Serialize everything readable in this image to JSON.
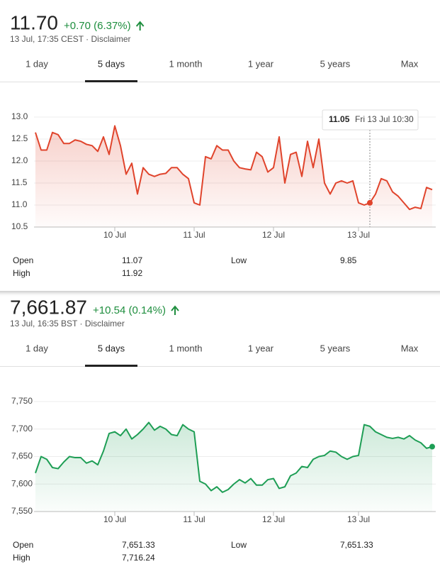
{
  "widgets": [
    {
      "price": "11.70",
      "change": "+0.70 (6.37%)",
      "timestamp": "13 Jul, 17:35 CEST · Disclaimer",
      "tabs": [
        "1 day",
        "5 days",
        "1 month",
        "1 year",
        "5 years",
        "Max"
      ],
      "selected_tab": 1,
      "stats": [
        [
          "Open",
          "11.07"
        ],
        [
          "High",
          "11.92"
        ],
        [
          "Low",
          "9.85"
        ]
      ]
    },
    {
      "price": "7,661.87",
      "change": "+10.54 (0.14%)",
      "timestamp": "13 Jul, 16:35 BST · Disclaimer",
      "tabs": [
        "1 day",
        "5 days",
        "1 month",
        "1 year",
        "5 years",
        "Max"
      ],
      "selected_tab": 1,
      "stats": [
        [
          "Open",
          "7,651.33"
        ],
        [
          "High",
          "7,716.24"
        ],
        [
          "Low",
          "7,651.33"
        ]
      ]
    }
  ],
  "chart_data": [
    {
      "type": "line",
      "color": "#e0442c",
      "grid": true,
      "highlight": 59,
      "tooltip": "Fri 13 Jul 10:30",
      "categories": [
        null,
        null,
        null,
        null,
        null,
        null,
        null,
        null,
        null,
        null,
        null,
        null,
        null,
        null,
        "10 Jul",
        null,
        null,
        null,
        null,
        null,
        null,
        null,
        null,
        null,
        null,
        null,
        null,
        null,
        "11 Jul",
        null,
        null,
        null,
        null,
        null,
        null,
        null,
        null,
        null,
        null,
        null,
        null,
        null,
        "12 Jul",
        null,
        null,
        null,
        null,
        null,
        null,
        null,
        null,
        null,
        null,
        null,
        null,
        null,
        null,
        "13 Jul",
        null,
        null,
        null,
        null,
        null,
        null,
        null,
        null,
        null,
        null,
        null,
        null,
        null
      ],
      "values": [
        12.65,
        12.25,
        12.25,
        12.65,
        12.6,
        12.4,
        12.4,
        12.48,
        12.45,
        12.38,
        12.35,
        12.22,
        12.55,
        12.15,
        12.8,
        12.35,
        11.7,
        11.95,
        11.25,
        11.85,
        11.7,
        11.65,
        11.7,
        11.72,
        11.85,
        11.85,
        11.7,
        11.6,
        11.05,
        11.0,
        12.1,
        12.05,
        12.35,
        12.25,
        12.25,
        12.0,
        11.85,
        11.82,
        11.8,
        12.2,
        12.1,
        11.75,
        11.85,
        12.55,
        11.5,
        12.15,
        12.2,
        11.65,
        12.45,
        11.85,
        12.5,
        11.5,
        11.25,
        11.5,
        11.55,
        11.5,
        11.55,
        11.05,
        11.0,
        11.05,
        11.25,
        11.6,
        11.55,
        11.3,
        11.2,
        11.05,
        10.9,
        10.95,
        10.92,
        11.4,
        11.35
      ],
      "ylim": [
        10.5,
        13.0
      ],
      "yticks": [
        10.5,
        {
          "value": 11,
          "label": "11.0"
        },
        11.5,
        {
          "value": 12,
          "label": "12.0"
        },
        12.5,
        {
          "value": 13,
          "label": "13.0"
        }
      ]
    },
    {
      "type": "line",
      "color": "#1e9e55",
      "grid": true,
      "highlight": 70,
      "categories": [
        null,
        null,
        null,
        null,
        null,
        null,
        null,
        null,
        null,
        null,
        null,
        null,
        null,
        null,
        "10 Jul",
        null,
        null,
        null,
        null,
        null,
        null,
        null,
        null,
        null,
        null,
        null,
        null,
        null,
        "11 Jul",
        null,
        null,
        null,
        null,
        null,
        null,
        null,
        null,
        null,
        null,
        null,
        null,
        null,
        "12 Jul",
        null,
        null,
        null,
        null,
        null,
        null,
        null,
        null,
        null,
        null,
        null,
        null,
        null,
        null,
        "13 Jul",
        null,
        null,
        null,
        null,
        null,
        null,
        null,
        null,
        null,
        null,
        null,
        null,
        null
      ],
      "values": [
        7620,
        7650,
        7645,
        7630,
        7628,
        7640,
        7650,
        7648,
        7648,
        7638,
        7642,
        7635,
        7660,
        7692,
        7695,
        7688,
        7700,
        7682,
        7690,
        7700,
        7712,
        7698,
        7705,
        7700,
        7690,
        7688,
        7708,
        7700,
        7695,
        7605,
        7600,
        7588,
        7595,
        7585,
        7590,
        7600,
        7608,
        7602,
        7610,
        7598,
        7598,
        7608,
        7610,
        7592,
        7595,
        7615,
        7620,
        7632,
        7630,
        7645,
        7650,
        7652,
        7660,
        7658,
        7650,
        7645,
        7650,
        7652,
        7708,
        7705,
        7695,
        7690,
        7685,
        7683,
        7685,
        7682,
        7688,
        7680,
        7675,
        7665,
        7668
      ],
      "ylim": [
        7550,
        7750
      ],
      "yticks": [
        {
          "value": 7550,
          "label": "7,550"
        },
        {
          "value": 7600,
          "label": "7,600"
        },
        {
          "value": 7650,
          "label": "7,650"
        },
        {
          "value": 7700,
          "label": "7,700"
        },
        {
          "value": 7750,
          "label": "7,750"
        }
      ]
    }
  ]
}
